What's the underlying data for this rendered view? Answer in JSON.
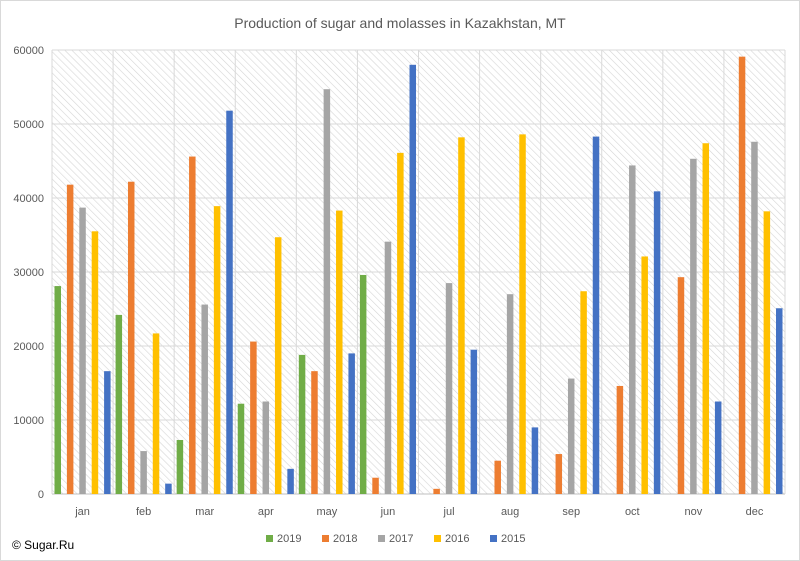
{
  "chart_data": {
    "type": "bar",
    "title": "Production of sugar and molasses in Kazakhstan, MT",
    "xlabel": "",
    "ylabel": "",
    "ylim": [
      0,
      60000
    ],
    "yticks": [
      0,
      10000,
      20000,
      30000,
      40000,
      50000,
      60000
    ],
    "categories": [
      "jan",
      "feb",
      "mar",
      "apr",
      "may",
      "jun",
      "jul",
      "aug",
      "sep",
      "oct",
      "nov",
      "dec"
    ],
    "grid": true,
    "legend_position": "bottom",
    "series": [
      {
        "name": "2019",
        "color": "#70ad47",
        "values": [
          28100,
          24200,
          7300,
          12200,
          18800,
          29600,
          null,
          null,
          null,
          null,
          null,
          null
        ]
      },
      {
        "name": "2018",
        "color": "#ed7d31",
        "values": [
          41800,
          42200,
          45600,
          20600,
          16600,
          2200,
          700,
          4500,
          5400,
          14600,
          29300,
          59100
        ]
      },
      {
        "name": "2017",
        "color": "#a5a5a5",
        "values": [
          38700,
          5800,
          25600,
          12500,
          54700,
          34100,
          28500,
          27000,
          15600,
          44400,
          45300,
          47600
        ]
      },
      {
        "name": "2016",
        "color": "#ffc000",
        "values": [
          35500,
          21700,
          38900,
          34700,
          38300,
          46100,
          48200,
          48600,
          27400,
          32100,
          47400,
          38200
        ]
      },
      {
        "name": "2015",
        "color": "#4472c4",
        "values": [
          16600,
          1400,
          51800,
          3400,
          19000,
          58000,
          19500,
          9000,
          48300,
          40900,
          12500,
          25100
        ]
      }
    ]
  },
  "footer": {
    "copyright": "© Sugar.Ru"
  }
}
